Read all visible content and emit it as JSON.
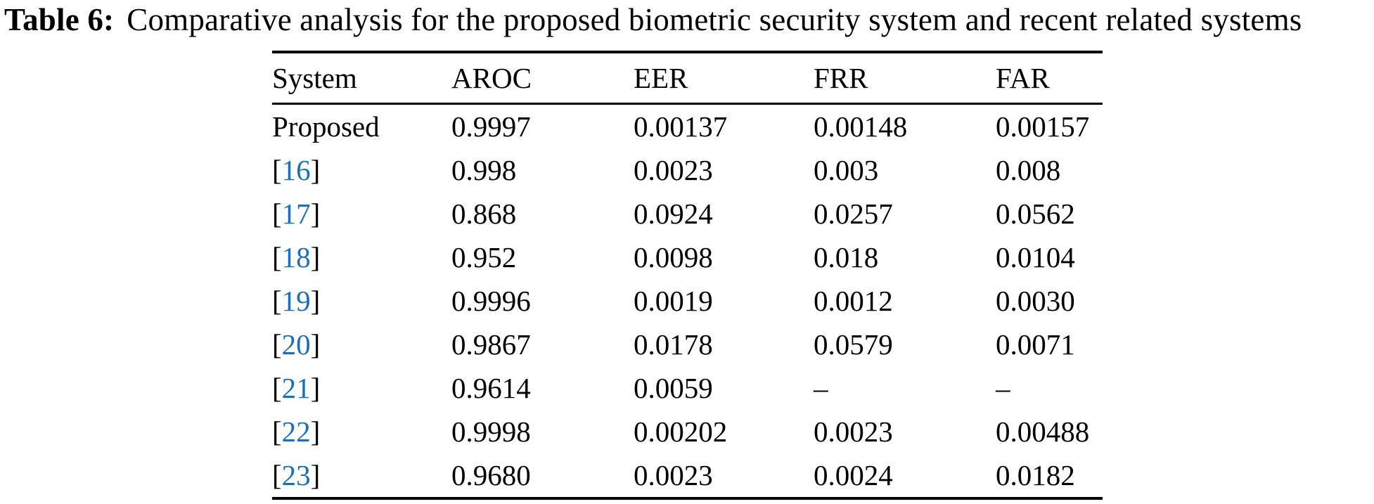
{
  "caption": {
    "label": "Table 6:",
    "text": "Comparative analysis for the proposed biometric security system and recent related systems"
  },
  "table": {
    "columns": [
      "System",
      "AROC",
      "EER",
      "FRR",
      "FAR"
    ],
    "rows": [
      {
        "system": "Proposed",
        "cite": null,
        "values": [
          "0.9997",
          "0.00137",
          "0.00148",
          "0.00157"
        ]
      },
      {
        "system": "[16]",
        "cite": "16",
        "values": [
          "0.998",
          "0.0023",
          "0.003",
          "0.008"
        ]
      },
      {
        "system": "[17]",
        "cite": "17",
        "values": [
          "0.868",
          "0.0924",
          "0.0257",
          "0.0562"
        ]
      },
      {
        "system": "[18]",
        "cite": "18",
        "values": [
          "0.952",
          "0.0098",
          "0.018",
          "0.0104"
        ]
      },
      {
        "system": "[19]",
        "cite": "19",
        "values": [
          "0.9996",
          "0.0019",
          "0.0012",
          "0.0030"
        ]
      },
      {
        "system": "[20]",
        "cite": "20",
        "values": [
          "0.9867",
          "0.0178",
          "0.0579",
          "0.0071"
        ]
      },
      {
        "system": "[21]",
        "cite": "21",
        "values": [
          "0.9614",
          "0.0059",
          "–",
          "–"
        ]
      },
      {
        "system": "[22]",
        "cite": "22",
        "values": [
          "0.9998",
          "0.00202",
          "0.0023",
          "0.00488"
        ]
      },
      {
        "system": "[23]",
        "cite": "23",
        "values": [
          "0.9680",
          "0.0023",
          "0.0024",
          "0.0182"
        ]
      }
    ]
  },
  "colors": {
    "text": "#000000",
    "rule": "#000000",
    "citation_link": "#1b6fba",
    "background": "#ffffff"
  }
}
